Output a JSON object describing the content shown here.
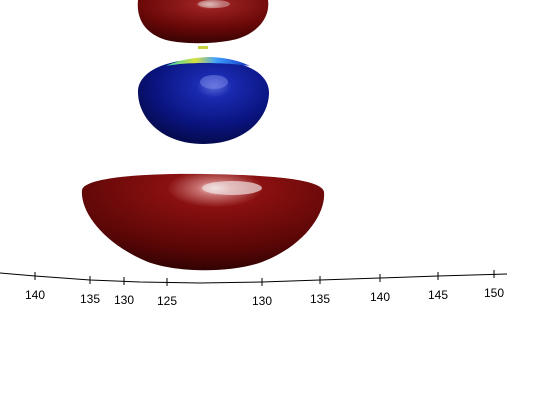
{
  "chart_data": {
    "type": "surface3d",
    "title": "",
    "xlabel": "",
    "ylabel": "",
    "grid": false,
    "legend": "none",
    "colormap": "jet",
    "axis_left_ticks": [
      "140",
      "135",
      "130",
      "125"
    ],
    "axis_right_ticks": [
      "130",
      "135",
      "140",
      "145",
      "150"
    ],
    "lobes": [
      {
        "name": "top-lobe",
        "color": "#7a0a0a",
        "value": "positive"
      },
      {
        "name": "middle-lobe",
        "color": "#0a1a8a",
        "value": "negative"
      },
      {
        "name": "bottom-lobe",
        "color": "#7a0a0a",
        "value": "positive"
      }
    ],
    "colors": {
      "positive": "#7a0a0a",
      "negative": "#0a1a8a",
      "highlight": "#e6d2d2",
      "axis": "#000000"
    }
  }
}
